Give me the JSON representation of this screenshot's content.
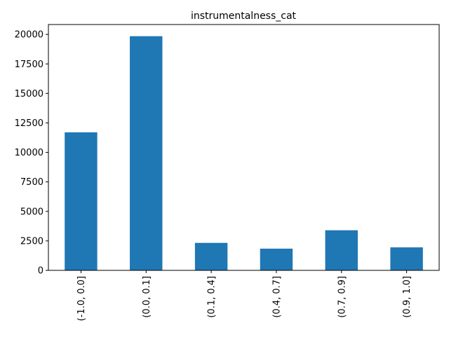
{
  "chart_data": {
    "type": "bar",
    "title": "instrumentalness_cat",
    "xlabel": "",
    "ylabel": "",
    "categories": [
      "(-1.0, 0.0]",
      "(0.0, 0.1]",
      "(0.1, 0.4]",
      "(0.4, 0.7]",
      "(0.7, 0.9]",
      "(0.9, 1.0]"
    ],
    "values": [
      11700,
      19850,
      2330,
      1840,
      3400,
      1950
    ],
    "ylim": [
      0,
      20840
    ],
    "yticks": [
      0,
      2500,
      5000,
      7500,
      10000,
      12500,
      15000,
      17500,
      20000
    ],
    "bar_color": "#1f77b4",
    "grid": false,
    "legend": "none"
  }
}
